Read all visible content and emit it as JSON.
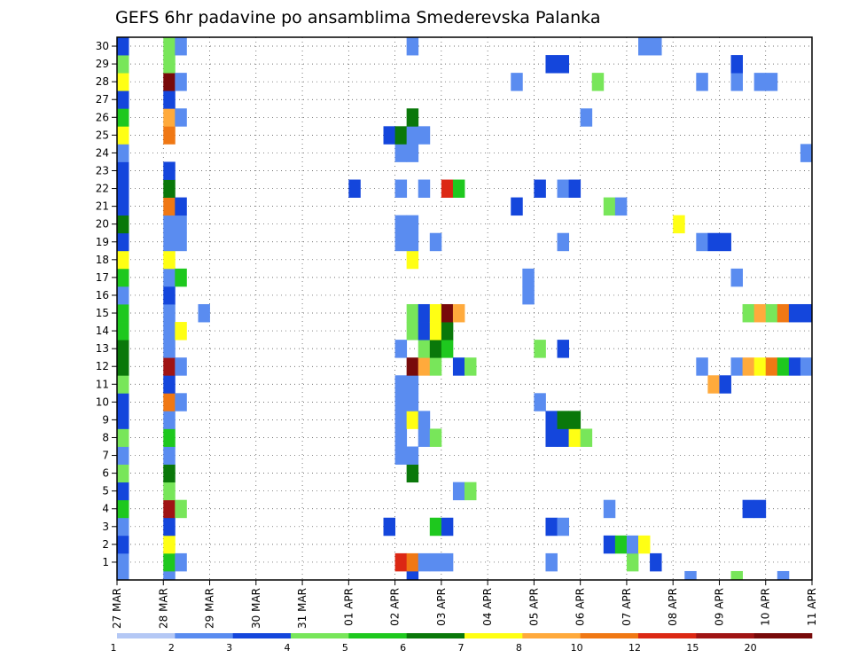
{
  "chart_data": {
    "type": "heatmap",
    "title": "GEFS 6hr padavine po ansamblima Smederevska Palanka",
    "xlabel": "",
    "ylabel": "",
    "x_ticks": [
      "27 MAR",
      "28 MAR",
      "29 MAR",
      "30 MAR",
      "31 MAR",
      "01 APR",
      "02 APR",
      "03 APR",
      "04 APR",
      "05 APR",
      "06 APR",
      "07 APR",
      "08 APR",
      "09 APR",
      "10 APR",
      "11 APR"
    ],
    "y_ticks": [
      "1",
      "2",
      "3",
      "4",
      "5",
      "6",
      "7",
      "8",
      "9",
      "10",
      "11",
      "12",
      "13",
      "14",
      "15",
      "16",
      "17",
      "18",
      "19",
      "20",
      "21",
      "22",
      "23",
      "24",
      "25",
      "26",
      "27",
      "28",
      "29",
      "30"
    ],
    "xlim": [
      0,
      60
    ],
    "ylim": [
      0,
      30.5
    ],
    "grid": true,
    "colorbar": {
      "position": "bottom",
      "labels": [
        "1",
        "2",
        "3",
        "4",
        "5",
        "6",
        "7",
        "8",
        "10",
        "12",
        "15",
        "20"
      ],
      "colors": [
        "#b4c8f5",
        "#5a8cf0",
        "#1446dc",
        "#78e65a",
        "#1ec81e",
        "#0a780a",
        "#ffff14",
        "#ffaa3c",
        "#f07814",
        "#dc2814",
        "#a01414",
        "#780a0a"
      ]
    },
    "cells": [
      [
        0,
        1,
        1
      ],
      [
        0,
        2,
        2
      ],
      [
        0,
        3,
        1
      ],
      [
        0,
        4,
        4
      ],
      [
        0,
        5,
        2
      ],
      [
        0,
        6,
        3
      ],
      [
        0,
        7,
        1
      ],
      [
        0,
        8,
        3
      ],
      [
        0,
        9,
        2
      ],
      [
        0,
        10,
        2
      ],
      [
        0,
        11,
        3
      ],
      [
        0,
        12,
        5
      ],
      [
        0,
        13,
        5
      ],
      [
        0,
        14,
        4
      ],
      [
        0,
        15,
        4
      ],
      [
        0,
        16,
        1
      ],
      [
        0,
        17,
        4
      ],
      [
        0,
        18,
        6
      ],
      [
        0,
        19,
        2
      ],
      [
        0,
        20,
        5
      ],
      [
        0,
        21,
        2
      ],
      [
        0,
        22,
        2
      ],
      [
        0,
        23,
        2
      ],
      [
        0,
        24,
        1
      ],
      [
        0,
        25,
        6
      ],
      [
        0,
        26,
        4
      ],
      [
        0,
        27,
        2
      ],
      [
        0,
        28,
        6
      ],
      [
        0,
        29,
        3
      ],
      [
        0,
        30,
        2
      ],
      [
        0,
        0,
        1
      ],
      [
        4,
        0,
        1
      ],
      [
        4,
        1,
        4
      ],
      [
        4,
        2,
        6
      ],
      [
        4,
        3,
        2
      ],
      [
        4,
        4,
        10
      ],
      [
        4,
        5,
        3
      ],
      [
        4,
        6,
        5
      ],
      [
        4,
        7,
        1
      ],
      [
        4,
        8,
        4
      ],
      [
        4,
        9,
        1
      ],
      [
        4,
        10,
        8
      ],
      [
        4,
        11,
        2
      ],
      [
        4,
        12,
        10
      ],
      [
        4,
        13,
        1
      ],
      [
        4,
        14,
        1
      ],
      [
        4,
        15,
        1
      ],
      [
        4,
        16,
        2
      ],
      [
        4,
        17,
        1
      ],
      [
        4,
        18,
        6
      ],
      [
        4,
        19,
        1
      ],
      [
        4,
        20,
        1
      ],
      [
        4,
        21,
        8
      ],
      [
        4,
        22,
        5
      ],
      [
        4,
        23,
        2
      ],
      [
        4,
        25,
        8
      ],
      [
        4,
        26,
        7
      ],
      [
        4,
        27,
        2
      ],
      [
        4,
        28,
        11
      ],
      [
        4,
        29,
        3
      ],
      [
        4,
        30,
        3
      ],
      [
        5,
        1,
        1
      ],
      [
        5,
        4,
        3
      ],
      [
        5,
        10,
        1
      ],
      [
        5,
        12,
        1
      ],
      [
        5,
        14,
        6
      ],
      [
        5,
        17,
        4
      ],
      [
        5,
        19,
        1
      ],
      [
        5,
        20,
        1
      ],
      [
        5,
        21,
        2
      ],
      [
        5,
        26,
        1
      ],
      [
        5,
        28,
        1
      ],
      [
        5,
        30,
        1
      ],
      [
        7,
        15,
        1
      ],
      [
        20,
        22,
        2
      ],
      [
        23,
        3,
        2
      ],
      [
        23,
        25,
        2
      ],
      [
        24,
        1,
        9
      ],
      [
        24,
        7,
        1
      ],
      [
        24,
        8,
        1
      ],
      [
        24,
        9,
        1
      ],
      [
        24,
        10,
        1
      ],
      [
        24,
        11,
        1
      ],
      [
        24,
        13,
        1
      ],
      [
        24,
        19,
        1
      ],
      [
        24,
        20,
        1
      ],
      [
        24,
        22,
        1
      ],
      [
        24,
        24,
        1
      ],
      [
        24,
        25,
        5
      ],
      [
        25,
        0,
        2
      ],
      [
        25,
        1,
        8
      ],
      [
        25,
        6,
        5
      ],
      [
        25,
        7,
        1
      ],
      [
        25,
        9,
        6
      ],
      [
        25,
        10,
        1
      ],
      [
        25,
        11,
        1
      ],
      [
        25,
        12,
        11
      ],
      [
        25,
        14,
        3
      ],
      [
        25,
        15,
        3
      ],
      [
        25,
        18,
        6
      ],
      [
        25,
        19,
        1
      ],
      [
        25,
        20,
        1
      ],
      [
        25,
        24,
        1
      ],
      [
        25,
        25,
        1
      ],
      [
        25,
        26,
        5
      ],
      [
        26,
        1,
        1
      ],
      [
        26,
        8,
        1
      ],
      [
        26,
        9,
        1
      ],
      [
        26,
        12,
        7
      ],
      [
        26,
        13,
        3
      ],
      [
        26,
        14,
        2
      ],
      [
        26,
        15,
        2
      ],
      [
        26,
        22,
        1
      ],
      [
        26,
        25,
        1
      ],
      [
        27,
        1,
        1
      ],
      [
        27,
        3,
        4
      ],
      [
        27,
        8,
        3
      ],
      [
        27,
        12,
        3
      ],
      [
        27,
        13,
        5
      ],
      [
        27,
        14,
        6
      ],
      [
        27,
        15,
        6
      ],
      [
        27,
        19,
        1
      ],
      [
        28,
        1,
        1
      ],
      [
        28,
        3,
        2
      ],
      [
        28,
        13,
        4
      ],
      [
        28,
        14,
        5
      ],
      [
        28,
        15,
        11
      ],
      [
        28,
        22,
        9
      ],
      [
        29,
        5,
        1
      ],
      [
        29,
        12,
        2
      ],
      [
        29,
        15,
        7
      ],
      [
        29,
        22,
        4
      ],
      [
        30,
        5,
        3
      ],
      [
        30,
        12,
        3
      ],
      [
        34,
        21,
        2
      ],
      [
        34,
        28,
        1
      ],
      [
        35,
        16,
        1
      ],
      [
        35,
        17,
        1
      ],
      [
        36,
        10,
        1
      ],
      [
        36,
        13,
        3
      ],
      [
        36,
        22,
        2
      ],
      [
        37,
        1,
        1
      ],
      [
        37,
        3,
        2
      ],
      [
        37,
        8,
        2
      ],
      [
        37,
        9,
        2
      ],
      [
        37,
        29,
        2
      ],
      [
        38,
        3,
        1
      ],
      [
        38,
        8,
        2
      ],
      [
        38,
        9,
        5
      ],
      [
        38,
        13,
        2
      ],
      [
        38,
        19,
        1
      ],
      [
        38,
        22,
        1
      ],
      [
        38,
        29,
        2
      ],
      [
        39,
        8,
        6
      ],
      [
        39,
        9,
        5
      ],
      [
        39,
        22,
        2
      ],
      [
        40,
        8,
        3
      ],
      [
        40,
        26,
        1
      ],
      [
        41,
        28,
        3
      ],
      [
        42,
        2,
        2
      ],
      [
        42,
        4,
        1
      ],
      [
        42,
        21,
        3
      ],
      [
        43,
        2,
        4
      ],
      [
        43,
        21,
        1
      ],
      [
        44,
        1,
        3
      ],
      [
        44,
        2,
        1
      ],
      [
        45,
        2,
        6
      ],
      [
        46,
        1,
        2
      ],
      [
        48,
        20,
        6
      ],
      [
        49,
        0,
        1
      ],
      [
        50,
        12,
        1
      ],
      [
        50,
        19,
        1
      ],
      [
        50,
        28,
        1
      ],
      [
        51,
        11,
        7
      ],
      [
        51,
        19,
        2
      ],
      [
        52,
        11,
        2
      ],
      [
        52,
        19,
        2
      ],
      [
        53,
        12,
        1
      ],
      [
        53,
        17,
        1
      ],
      [
        53,
        28,
        1
      ],
      [
        53,
        29,
        2
      ],
      [
        53,
        0,
        3
      ],
      [
        54,
        4,
        2
      ],
      [
        54,
        12,
        7
      ],
      [
        54,
        15,
        3
      ],
      [
        55,
        4,
        2
      ],
      [
        55,
        12,
        6
      ],
      [
        55,
        15,
        7
      ],
      [
        55,
        28,
        1
      ],
      [
        56,
        12,
        8
      ],
      [
        56,
        15,
        3
      ],
      [
        56,
        28,
        1
      ],
      [
        57,
        12,
        4
      ],
      [
        57,
        15,
        8
      ],
      [
        57,
        0,
        1
      ],
      [
        58,
        12,
        2
      ],
      [
        58,
        15,
        2
      ],
      [
        59,
        12,
        1
      ],
      [
        59,
        15,
        2
      ],
      [
        59,
        24,
        1
      ],
      [
        45,
        30,
        1
      ],
      [
        46,
        30,
        1
      ],
      [
        25,
        30,
        1
      ]
    ]
  }
}
